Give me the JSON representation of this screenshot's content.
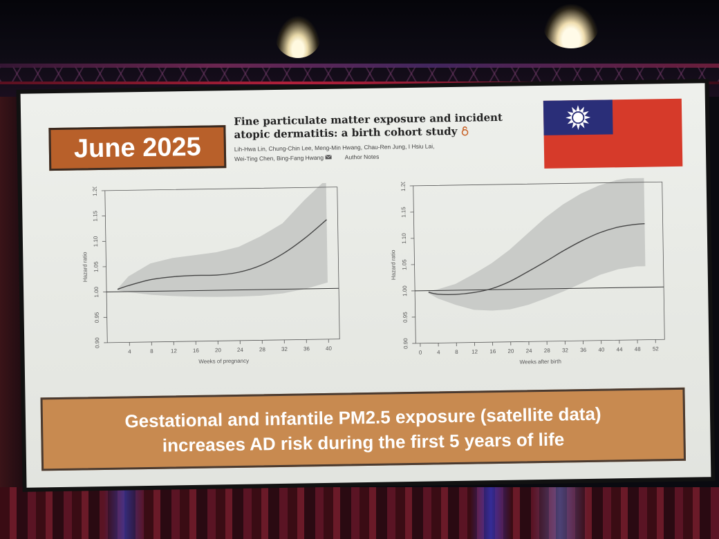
{
  "slide": {
    "date_label": "June 2025",
    "paper_title": "Fine particulate matter exposure and incident atopic dermatitis: a birth cohort study",
    "open_access_icon": "open-lock-icon",
    "authors_line1": "Lih-Hwa Lin, Chung-Chin Lee, Meng-Min Hwang, Chau-Ren Jung, I Hsiu Lai,",
    "authors_line2": "Wei-Ting Chen, Bing-Fang Hwang",
    "email_icon": "envelope-icon",
    "author_notes": "Author Notes",
    "flag_icon": "taiwan-flag-icon",
    "summary_line1": "Gestational and infantile PM2.5 exposure (satellite data)",
    "summary_line2": "increases AD risk during the first 5 years of life"
  },
  "colors": {
    "date_box": "#b8602a",
    "summary_box": "#c88a50",
    "flag_red": "#d63a2a",
    "flag_blue": "#2a2e78",
    "band": "#c9cbc8",
    "curve": "#444444"
  },
  "chart_data": [
    {
      "type": "line",
      "xlabel": "Weeks of pregnancy",
      "ylabel": "Hazard ratio",
      "xticks": [
        4,
        8,
        12,
        16,
        20,
        24,
        28,
        32,
        36,
        40
      ],
      "yticks": [
        "0.90",
        "0.95",
        "1.00",
        "1.05",
        "1.10",
        "1.15",
        "1.20"
      ],
      "xlim": [
        0,
        42
      ],
      "ylim": [
        0.9,
        1.2
      ],
      "reference_line": 1.0,
      "series": [
        {
          "x": [
            2,
            4,
            8,
            12,
            16,
            20,
            24,
            28,
            32,
            36,
            40
          ],
          "y": [
            1.005,
            1.012,
            1.023,
            1.028,
            1.03,
            1.03,
            1.035,
            1.048,
            1.07,
            1.1,
            1.136
          ],
          "lower": [
            1.003,
            0.999,
            0.993,
            0.99,
            0.988,
            0.987,
            0.987,
            0.988,
            0.992,
            1.0,
            1.012
          ],
          "upper": [
            1.006,
            1.03,
            1.055,
            1.065,
            1.07,
            1.075,
            1.085,
            1.105,
            1.13,
            1.175,
            1.215
          ]
        }
      ]
    },
    {
      "type": "line",
      "xlabel": "Weeks after birth",
      "ylabel": "Hazard ratio",
      "xticks": [
        0,
        4,
        8,
        12,
        16,
        20,
        24,
        28,
        32,
        36,
        40,
        44,
        48,
        52
      ],
      "yticks": [
        "0.90",
        "0.95",
        "1.00",
        "1.05",
        "1.10",
        "1.15",
        "1.20"
      ],
      "xlim": [
        -1,
        54
      ],
      "ylim": [
        0.9,
        1.2
      ],
      "reference_line": 1.0,
      "series": [
        {
          "x": [
            2,
            4,
            8,
            12,
            16,
            20,
            24,
            28,
            32,
            36,
            40,
            44,
            48,
            50
          ],
          "y": [
            0.997,
            0.993,
            0.992,
            0.995,
            1.002,
            1.015,
            1.033,
            1.052,
            1.072,
            1.09,
            1.105,
            1.115,
            1.12,
            1.121
          ],
          "lower": [
            0.995,
            0.985,
            0.972,
            0.962,
            0.96,
            0.962,
            0.97,
            0.982,
            0.995,
            1.01,
            1.025,
            1.035,
            1.04,
            1.04
          ],
          "upper": [
            0.999,
            1.002,
            1.012,
            1.03,
            1.05,
            1.075,
            1.105,
            1.135,
            1.16,
            1.18,
            1.195,
            1.205,
            1.21,
            1.21
          ]
        }
      ]
    }
  ]
}
